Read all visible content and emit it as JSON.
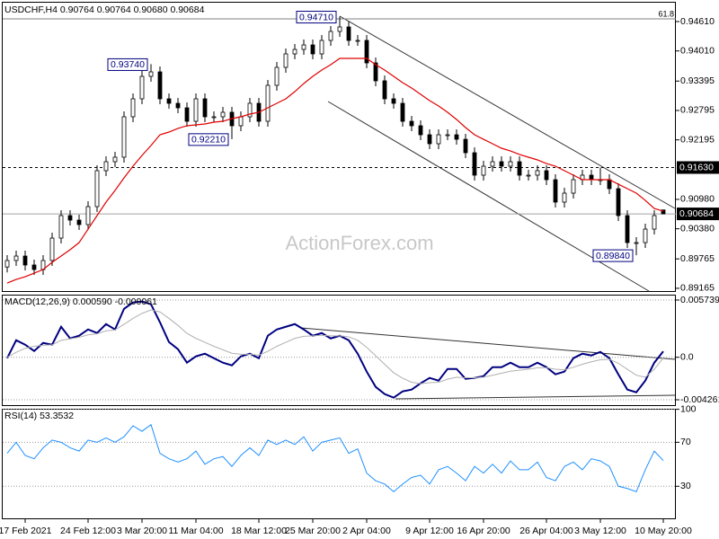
{
  "chart_data": [
    {
      "type": "candlestick",
      "title": "USDCHF,H4  0.90764 0.90764 0.90680 0.90684",
      "watermark": "ActionForex.com",
      "categories": [
        null,
        null,
        "17 Feb 2021",
        null,
        null,
        null,
        null,
        null,
        null,
        "24 Feb 12:00",
        null,
        null,
        null,
        null,
        null,
        "3 Mar 20:00",
        null,
        null,
        null,
        null,
        null,
        "11 Mar 04:00",
        null,
        null,
        null,
        null,
        null,
        null,
        "18 Mar 12:00",
        null,
        null,
        null,
        null,
        null,
        "25 Mar 20:00",
        null,
        null,
        null,
        null,
        null,
        "2 Apr 04:00",
        null,
        null,
        null,
        null,
        null,
        null,
        "9 Apr 12:00",
        null,
        null,
        null,
        null,
        null,
        "16 Apr 20:00",
        null,
        null,
        null,
        null,
        null,
        null,
        "26 Apr 04:00",
        null,
        null,
        null,
        null,
        null,
        "3 May 12:00",
        null,
        null,
        null,
        null,
        null,
        null,
        "10 May 20:00"
      ],
      "open": [
        0.896,
        0.89732,
        0.89823,
        0.8964,
        0.89548,
        0.89732,
        0.9019,
        0.90649,
        0.90557,
        0.90465,
        0.90832,
        0.91566,
        0.91749,
        0.91841,
        0.92666,
        0.93033,
        0.93491,
        0.93583,
        0.93033,
        0.92941,
        0.92849,
        0.92574,
        0.93033,
        0.92666,
        0.92666,
        0.92758,
        0.92483,
        0.92666,
        0.92941,
        0.92574,
        0.93308,
        0.93675,
        0.9395,
        0.94041,
        0.94133,
        0.9395,
        0.94225,
        0.94408,
        0.945,
        0.94225,
        0.94225,
        0.93766,
        0.934,
        0.93033,
        0.92941,
        0.92574,
        0.92483,
        0.92299,
        0.92116,
        0.92299,
        0.92299,
        0.92207,
        0.91932,
        0.91474,
        0.91657,
        0.91749,
        0.91657,
        0.91749,
        0.91474,
        0.91474,
        0.91566,
        0.91382,
        0.90924,
        0.91107,
        0.91382,
        0.91474,
        0.91382,
        0.91382,
        0.91199,
        0.90649,
        0.90098,
        0.90098,
        0.90373,
        0.90764
      ],
      "high": [
        0.89842,
        0.89933,
        0.89933,
        0.8975,
        0.89842,
        0.903,
        0.90759,
        0.90759,
        0.90667,
        0.90942,
        0.91676,
        0.91859,
        0.91951,
        0.92776,
        0.93143,
        0.93601,
        0.9374,
        0.93693,
        0.93143,
        0.93051,
        0.92959,
        0.93143,
        0.93143,
        0.92776,
        0.92868,
        0.92868,
        0.92776,
        0.93051,
        0.93051,
        0.93418,
        0.93785,
        0.9406,
        0.94151,
        0.94243,
        0.94243,
        0.94335,
        0.94518,
        0.9471,
        0.9461,
        0.94335,
        0.94335,
        0.93876,
        0.9351,
        0.93143,
        0.93051,
        0.92684,
        0.92593,
        0.92409,
        0.92409,
        0.92409,
        0.92409,
        0.92317,
        0.92042,
        0.91767,
        0.91859,
        0.91859,
        0.91859,
        0.91859,
        0.91584,
        0.91676,
        0.91676,
        0.91492,
        0.91217,
        0.91492,
        0.91584,
        0.91584,
        0.9163,
        0.91492,
        0.91309,
        0.90759,
        0.90208,
        0.90483,
        0.90759,
        0.90764
      ],
      "low": [
        0.8949,
        0.89622,
        0.8953,
        0.89438,
        0.89438,
        0.89622,
        0.9008,
        0.90447,
        0.90355,
        0.90355,
        0.90722,
        0.91456,
        0.91639,
        0.91731,
        0.92556,
        0.92923,
        0.93381,
        0.92923,
        0.92831,
        0.92739,
        0.92464,
        0.92464,
        0.92556,
        0.92556,
        0.92556,
        0.9221,
        0.92373,
        0.92556,
        0.92464,
        0.92464,
        0.93198,
        0.93565,
        0.9384,
        0.93931,
        0.9384,
        0.9384,
        0.94115,
        0.94298,
        0.94115,
        0.94115,
        0.93656,
        0.9329,
        0.92923,
        0.92831,
        0.92464,
        0.92373,
        0.92189,
        0.92006,
        0.92006,
        0.92189,
        0.92097,
        0.91822,
        0.91364,
        0.91364,
        0.91547,
        0.91547,
        0.91547,
        0.91364,
        0.91364,
        0.91364,
        0.91272,
        0.90814,
        0.90814,
        0.90997,
        0.91272,
        0.91272,
        0.91272,
        0.91089,
        0.90539,
        0.89988,
        0.8984,
        0.89988,
        0.90263,
        0.9068
      ],
      "close": [
        0.89732,
        0.89823,
        0.8964,
        0.89548,
        0.89732,
        0.9019,
        0.90649,
        0.90557,
        0.90465,
        0.90832,
        0.91566,
        0.91749,
        0.91841,
        0.92666,
        0.93033,
        0.93491,
        0.93583,
        0.93033,
        0.92941,
        0.92849,
        0.92574,
        0.93033,
        0.92666,
        0.92666,
        0.92758,
        0.92483,
        0.92666,
        0.92941,
        0.92574,
        0.93308,
        0.93675,
        0.9395,
        0.94041,
        0.94133,
        0.9395,
        0.94225,
        0.94408,
        0.945,
        0.94225,
        0.94225,
        0.93766,
        0.934,
        0.93033,
        0.92941,
        0.92574,
        0.92483,
        0.92299,
        0.92116,
        0.92299,
        0.92299,
        0.92207,
        0.91932,
        0.91474,
        0.91657,
        0.91749,
        0.91657,
        0.91749,
        0.91474,
        0.91474,
        0.91566,
        0.91382,
        0.90924,
        0.91107,
        0.91382,
        0.91474,
        0.91382,
        0.91382,
        0.91199,
        0.90649,
        0.90098,
        0.90098,
        0.90373,
        0.90649,
        0.90684
      ],
      "color": "#000000",
      "overlay": {
        "color": "#e00000",
        "values": [
          0.89273,
          0.89346,
          0.89401,
          0.89475,
          0.89548,
          0.89695,
          0.89823,
          0.89952,
          0.90098,
          0.90373,
          0.90649,
          0.90924,
          0.91162,
          0.91419,
          0.91657,
          0.91877,
          0.92079,
          0.92299,
          0.92354,
          0.92428,
          0.92483,
          0.92501,
          0.92519,
          0.92556,
          0.92574,
          0.92629,
          0.92666,
          0.92721,
          0.92758,
          0.92849,
          0.92941,
          0.93033,
          0.93179,
          0.93345,
          0.93491,
          0.9362,
          0.9373,
          0.93858,
          0.93858,
          0.93858,
          0.93858,
          0.9373,
          0.9362,
          0.93491,
          0.93363,
          0.93253,
          0.93124,
          0.92996,
          0.92886,
          0.92758,
          0.92611,
          0.92446,
          0.92299,
          0.92207,
          0.92116,
          0.92024,
          0.91969,
          0.91896,
          0.91841,
          0.91786,
          0.91712,
          0.91657,
          0.91566,
          0.91474,
          0.91382,
          0.91382,
          0.91382,
          0.91382,
          0.9129,
          0.91199,
          0.91107,
          0.9096,
          0.90795,
          0.9074
        ]
      },
      "ylim": [
        0.8909,
        0.9505
      ],
      "yticks": [
        {
          "value": 0.9461,
          "label": "0.94610"
        },
        {
          "value": 0.9401,
          "label": "0.94010"
        },
        {
          "value": 0.93395,
          "label": "0.93395"
        },
        {
          "value": 0.92795,
          "label": "0.92795"
        },
        {
          "value": 0.92195,
          "label": "0.92195"
        },
        {
          "value": 0.9098,
          "label": "0.90980"
        },
        {
          "value": 0.9038,
          "label": "0.90380"
        },
        {
          "value": 0.89765,
          "label": "0.89765"
        },
        {
          "value": 0.89165,
          "label": "0.89165"
        }
      ],
      "grid": false,
      "price_labels": [
        {
          "value": 0.9163,
          "label": "0.91630",
          "line_style": "dashed"
        },
        {
          "value": 0.90684,
          "label": "0.90684",
          "line_style": "solid"
        }
      ],
      "fib_level": {
        "value": 0.94665,
        "label": "61.8"
      },
      "annotations": [
        {
          "value": 0.9471,
          "label": "0.94710"
        },
        {
          "value": 0.9374,
          "label": "0.93740"
        },
        {
          "value": 0.9221,
          "label": "0.92210"
        },
        {
          "value": 0.8984,
          "label": "0.89840"
        }
      ]
    },
    {
      "type": "line",
      "title": "MACD(12,26,9) 0.000590 -0.000061",
      "series": [
        {
          "color": "#000080",
          "values": [
            -9e-05,
            0.00171,
            0.00126,
            0.00063,
            0.00144,
            0.00126,
            0.00306,
            0.00189,
            0.00216,
            0.00279,
            0.00243,
            0.00333,
            0.00279,
            0.00486,
            0.0055,
            0.00559,
            0.00532,
            0.00351,
            0.00153,
            0.00081,
            -0.00054,
            9e-05,
            0.00036,
            -9e-05,
            -0.00054,
            -0.00081,
            9e-05,
            0.00036,
            -9e-05,
            0.00216,
            0.00279,
            0.00306,
            0.00333,
            0.00279,
            0.00216,
            0.00243,
            0.00189,
            0.00216,
            0.00171,
            0.00036,
            -0.00144,
            -0.00297,
            -0.00369,
            -0.00405,
            -0.00342,
            -0.00324,
            -0.00261,
            -0.00207,
            -0.00234,
            -0.00117,
            -0.00117,
            -0.00216,
            -0.00207,
            -0.00189,
            -0.00099,
            -0.00099,
            -0.00054,
            -0.00099,
            -0.00099,
            -0.00054,
            -0.00099,
            -0.00171,
            -0.00144,
            -9e-05,
            0.00036,
            0.00018,
            0.00054,
            -9e-05,
            -0.00171,
            -0.00324,
            -0.00351,
            -0.00234,
            -0.00054,
            0.00059
          ]
        },
        {
          "color": "#b0b0b0",
          "values": [
            0,
            0.0005,
            0.0009,
            0.0011,
            0.0012,
            0.00125,
            0.0017,
            0.00185,
            0.002,
            0.00225,
            0.00235,
            0.00265,
            0.00275,
            0.0033,
            0.0039,
            0.0044,
            0.00475,
            0.00455,
            0.0039,
            0.0032,
            0.0024,
            0.0019,
            0.0015,
            0.0011,
            0.00075,
            0.0004,
            0.0003,
            0.0003,
            0.0002,
            0.0006,
            0.0011,
            0.0015,
            0.0019,
            0.0021,
            0.00215,
            0.0022,
            0.00215,
            0.00215,
            0.00205,
            0.0017,
            0.001,
            0.00015,
            -0.0007,
            -0.00155,
            -0.0021,
            -0.0025,
            -0.00265,
            -0.00255,
            -0.0025,
            -0.0022,
            -0.002,
            -0.00205,
            -0.00205,
            -0.002,
            -0.0018,
            -0.0016,
            -0.0014,
            -0.0013,
            -0.0012,
            -0.00105,
            -0.00105,
            -0.0012,
            -0.00125,
            -0.001,
            -0.0007,
            -0.00045,
            -0.00025,
            -0.0002,
            -0.0006,
            -0.0012,
            -0.0018,
            -0.002,
            -0.0012,
            -6.1e-05
          ]
        }
      ],
      "ylim": [
        -0.00489,
        0.00628
      ],
      "yticks": [
        0.005739,
        {
          "value": 0,
          "label": "0.0"
        },
        -0.004261
      ],
      "grid": true
    },
    {
      "type": "line",
      "title": "RSI(14) 53.3532",
      "series": [
        {
          "color": "#1e90ff",
          "values": [
            60,
            70,
            58,
            55,
            65,
            72,
            70,
            65,
            62,
            72,
            70,
            74,
            70,
            75,
            85,
            80,
            86,
            60,
            55,
            52,
            55,
            62,
            50,
            55,
            57,
            48,
            58,
            65,
            58,
            72,
            68,
            72,
            68,
            75,
            62,
            70,
            72,
            74,
            60,
            64,
            42,
            35,
            32,
            25,
            32,
            38,
            40,
            32,
            45,
            48,
            42,
            35,
            48,
            42,
            50,
            42,
            53,
            45,
            45,
            52,
            38,
            35,
            48,
            52,
            45,
            55,
            53,
            48,
            30,
            28,
            25,
            45,
            62,
            53.3532
          ]
        }
      ],
      "ylim": [
        0,
        100.5
      ],
      "yticks": [
        100,
        70,
        30
      ],
      "grid": true
    }
  ]
}
